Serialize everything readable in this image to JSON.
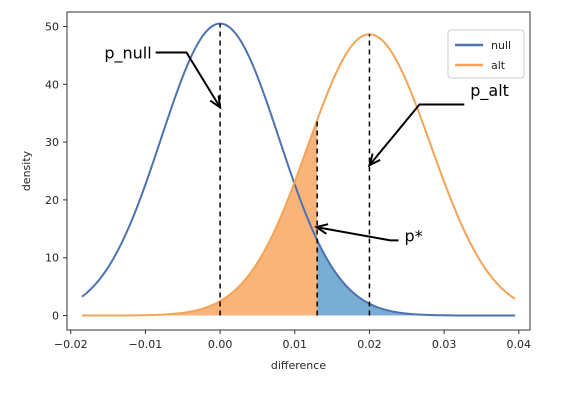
{
  "chart_data": {
    "type": "line",
    "xlabel": "difference",
    "ylabel": "density",
    "xlim": [
      -0.0205,
      0.0415
    ],
    "ylim": [
      -2.5,
      52.5
    ],
    "xticks": [
      -0.02,
      -0.01,
      0.0,
      0.01,
      0.02,
      0.03,
      0.04
    ],
    "xtick_labels": [
      "−0.02",
      "−0.01",
      "0.00",
      "0.01",
      "0.02",
      "0.03",
      "0.04"
    ],
    "yticks": [
      0,
      10,
      20,
      30,
      40,
      50
    ],
    "ytick_labels": [
      "0",
      "10",
      "20",
      "30",
      "40",
      "50"
    ],
    "grid": false,
    "legend_position": "top-right",
    "series": [
      {
        "name": "null",
        "distribution": "normal",
        "mean": 0.0,
        "sd": 0.0079,
        "x_range": [
          -0.0185,
          0.0395
        ],
        "color": "#4c72b0"
      },
      {
        "name": "alt",
        "distribution": "normal",
        "mean": 0.02,
        "sd": 0.0082,
        "x_range": [
          -0.0185,
          0.0395
        ],
        "color": "#f5a356"
      }
    ],
    "critical_value": 0.013,
    "shading": [
      {
        "series": "alt",
        "from": -0.0185,
        "to": 0.013,
        "color": "#f9b47a"
      },
      {
        "series": "null",
        "from": 0.013,
        "to": 0.0395,
        "color": "#7aadd4"
      }
    ],
    "vertical_lines": [
      {
        "x": 0.0,
        "series": "null"
      },
      {
        "x": 0.013,
        "series": "alt"
      },
      {
        "x": 0.02,
        "series": "alt"
      }
    ],
    "annotations": [
      {
        "text": "p_null",
        "text_x": -0.0155,
        "text_y": 44.5,
        "elbow_x": -0.0045,
        "elbow_y": 45.5,
        "arrow_x": 0.0,
        "arrow_y": 36
      },
      {
        "text": "p_alt",
        "text_x": 0.0335,
        "text_y": 38,
        "elbow_x": 0.0267,
        "elbow_y": 36.5,
        "arrow_x": 0.02,
        "arrow_y": 26
      },
      {
        "text": "p*",
        "text_x": 0.0247,
        "text_y": 12.8,
        "elbow_x": 0.0228,
        "elbow_y": 13,
        "arrow_x": 0.0129,
        "arrow_y": 15.3
      }
    ]
  }
}
